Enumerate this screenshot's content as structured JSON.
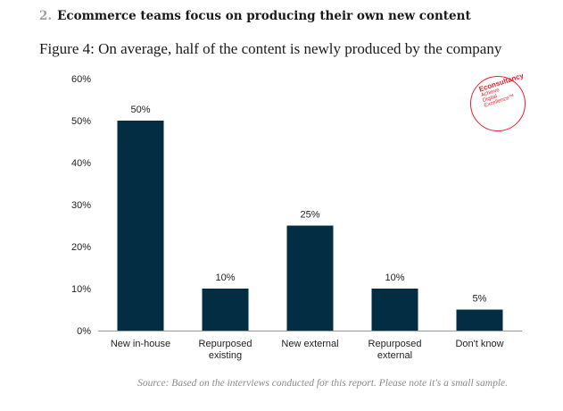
{
  "heading": {
    "number": "2.",
    "text": "Ecommerce teams focus on producing their own new content"
  },
  "chart_data": {
    "type": "bar",
    "title": "Figure 4: On average, half of the content is newly produced by the company",
    "categories": [
      [
        "New in-house"
      ],
      [
        "Repurposed",
        "existing"
      ],
      [
        "New external"
      ],
      [
        "Repurposed",
        "external"
      ],
      [
        "Don't know"
      ]
    ],
    "values": [
      50,
      10,
      25,
      10,
      5
    ],
    "data_labels": [
      "50%",
      "10%",
      "25%",
      "10%",
      "5%"
    ],
    "yticks": [
      0,
      10,
      20,
      30,
      40,
      50,
      60
    ],
    "ytick_labels": [
      "0%",
      "10%",
      "20%",
      "30%",
      "40%",
      "50%",
      "60%"
    ],
    "ylim": [
      0,
      60
    ],
    "xlabel": "",
    "ylabel": "",
    "grid": false,
    "bar_color": "#022d42"
  },
  "logo": {
    "brand": "Econsultancy",
    "line1": "Achieve",
    "line2": "Digital",
    "line3": "Excellence™",
    "color": "#e8202c"
  },
  "source": "Source: Based on the interviews conducted for this report. Please note it's a small sample."
}
